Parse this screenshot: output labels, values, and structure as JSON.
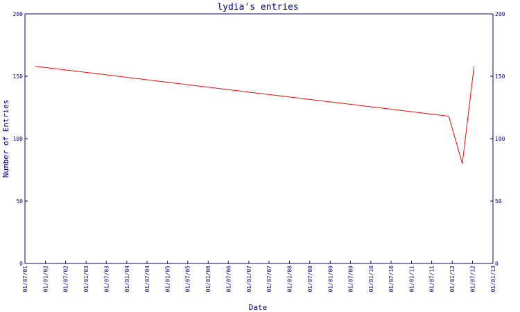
{
  "chart_data": {
    "type": "line",
    "title": "lydia's entries",
    "xlabel": "Date",
    "ylabel": "Number of Entries",
    "ylim": [
      0,
      200
    ],
    "yticks": [
      0,
      50,
      100,
      150,
      200
    ],
    "xticks": [
      "01/07/01",
      "01/01/02",
      "01/07/02",
      "01/01/03",
      "01/07/03",
      "01/01/04",
      "01/07/04",
      "01/01/05",
      "01/07/05",
      "01/01/06",
      "01/07/06",
      "01/01/07",
      "01/07/07",
      "01/01/08",
      "01/07/08",
      "01/01/09",
      "01/07/09",
      "01/01/10",
      "01/07/10",
      "01/01/11",
      "01/07/11",
      "01/01/12",
      "01/07/12",
      "01/01/13"
    ],
    "grid": false,
    "series": [
      {
        "color": "#ff0000",
        "points": [
          {
            "x": "2001-10-01",
            "y": 158
          },
          {
            "x": "2011-12-01",
            "y": 118
          },
          {
            "x": "2012-04-01",
            "y": 80
          },
          {
            "x": "2012-07-15",
            "y": 158
          }
        ]
      }
    ]
  },
  "colors": {
    "axis": "#000080",
    "series": "#ff0000",
    "background": "#ffffff"
  }
}
